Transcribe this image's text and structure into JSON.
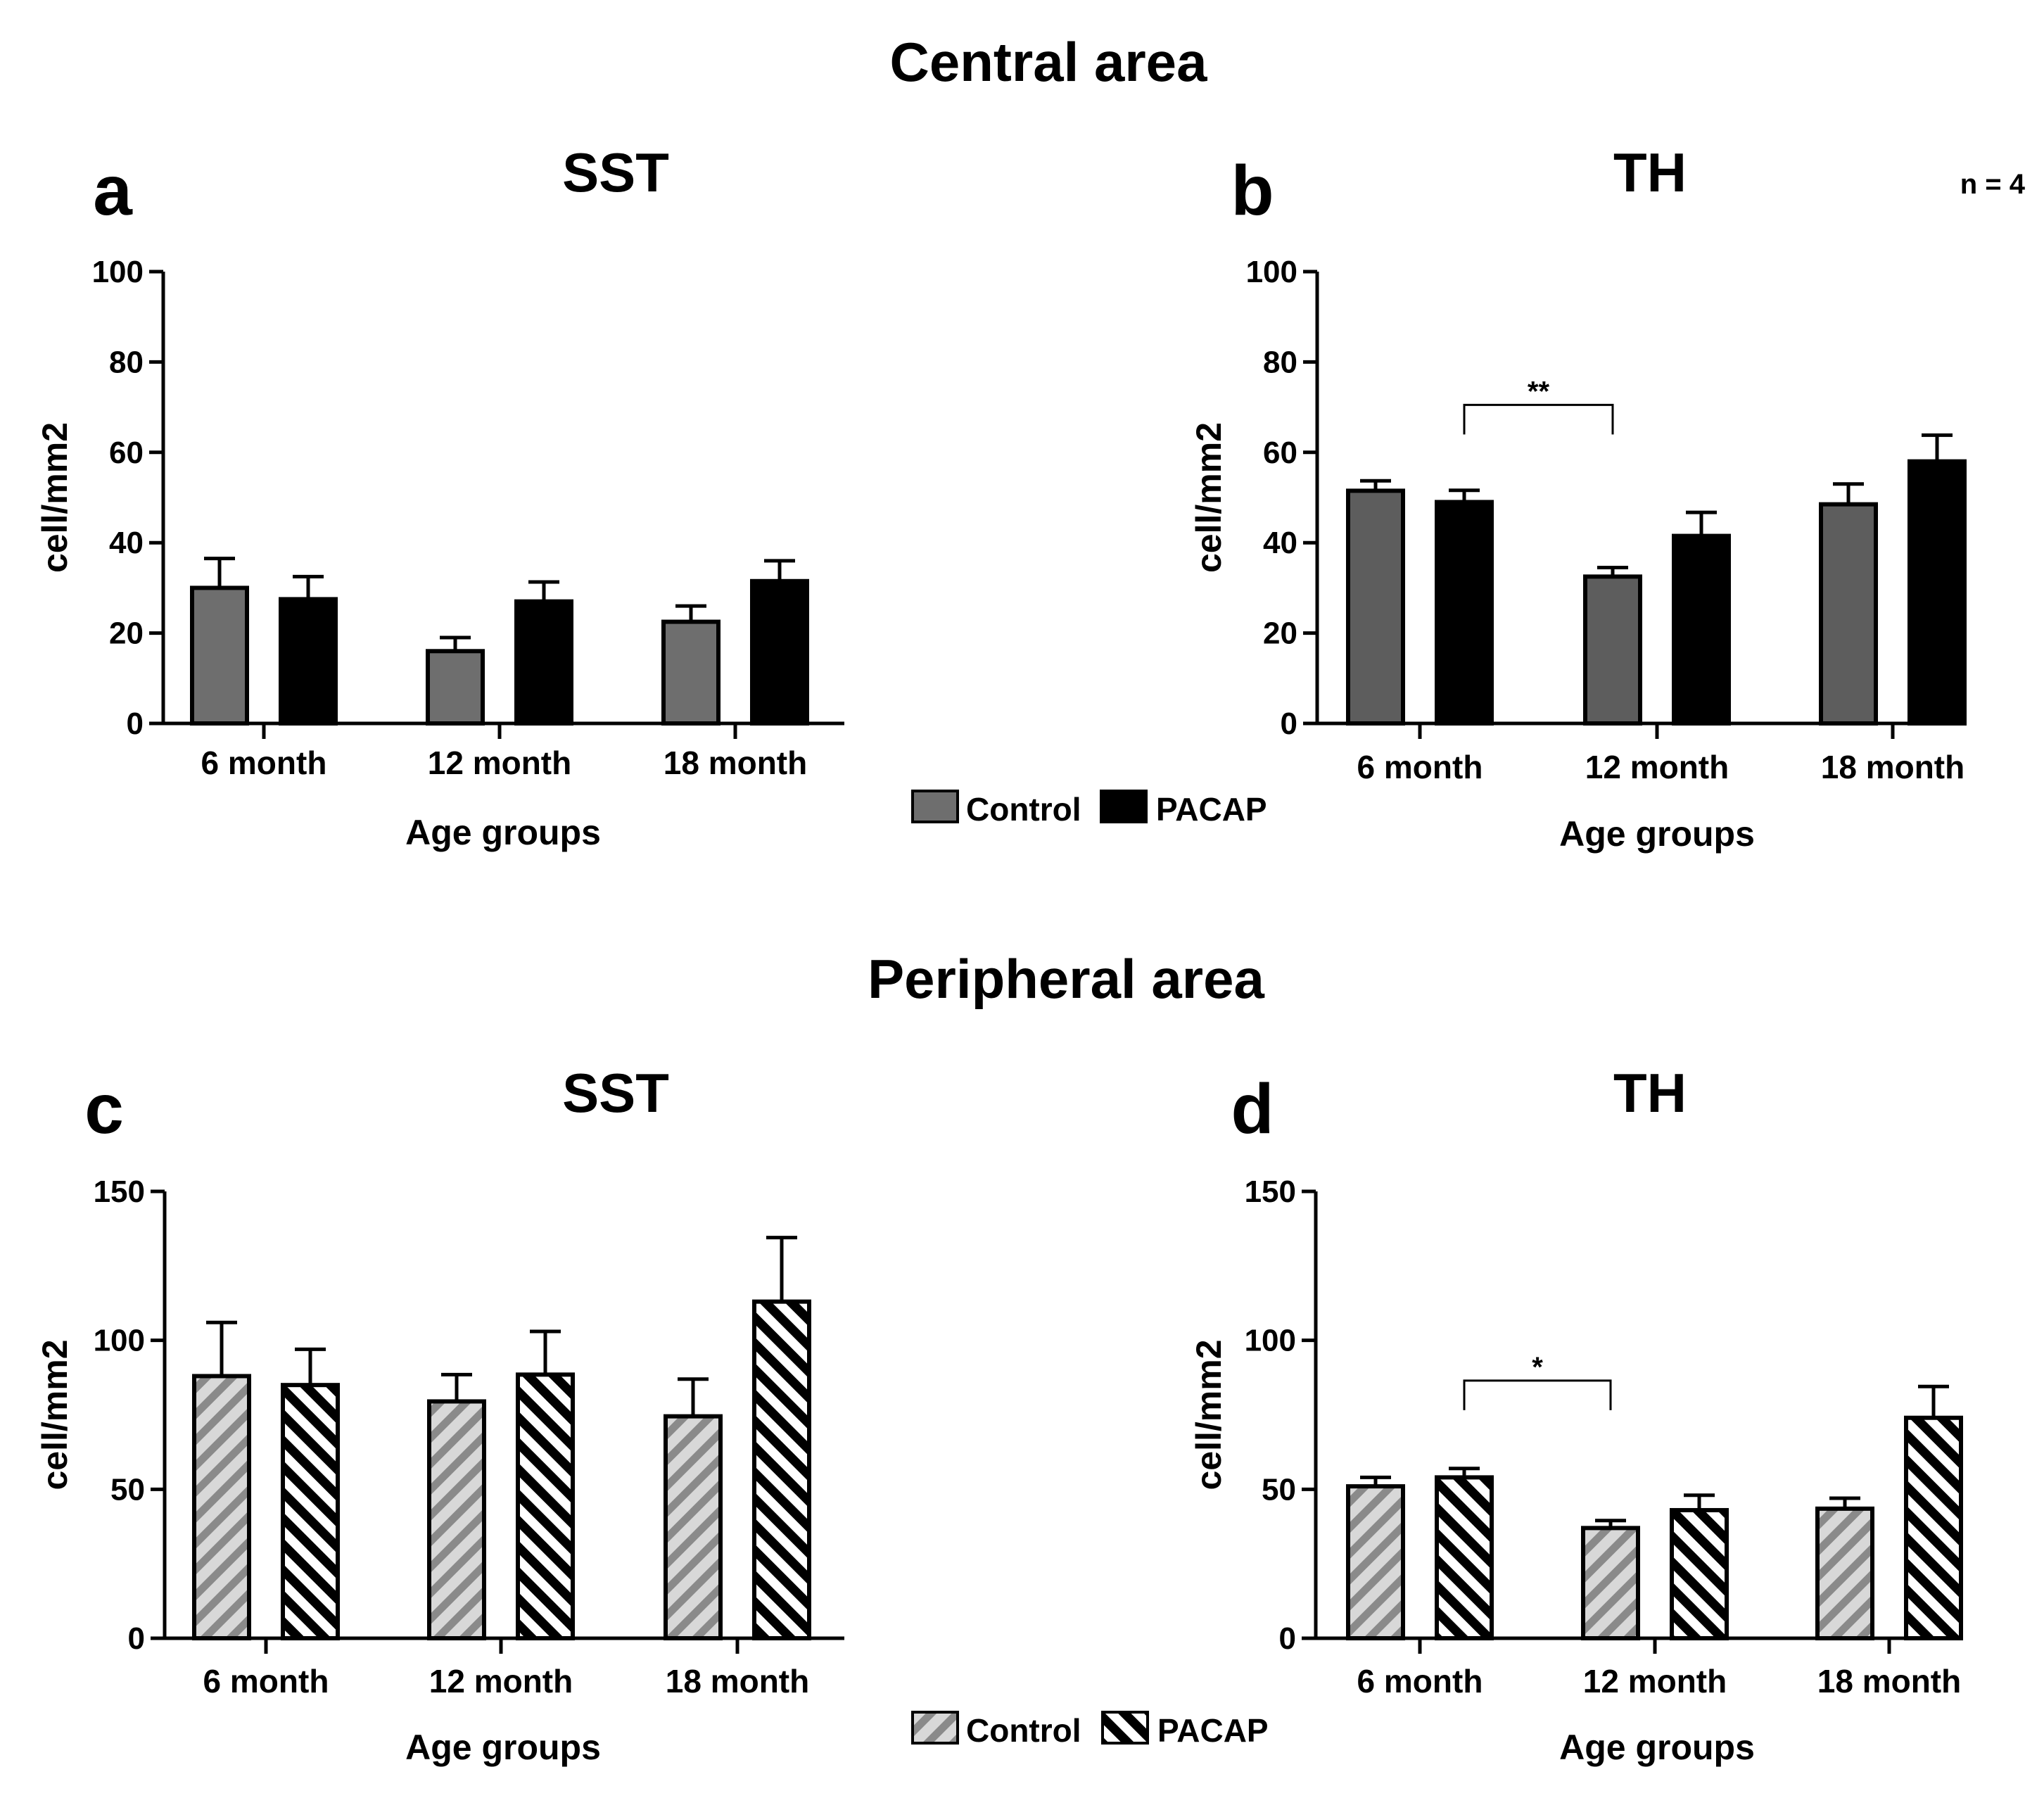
{
  "sections": [
    {
      "title": "Central area"
    },
    {
      "title": "Peripheral area"
    }
  ],
  "note": "n = 4",
  "legend": {
    "control_label": "Control",
    "pacap_label": "PACAP"
  },
  "colors": {
    "control_solid": "#6e6e6e",
    "control_solid_b": "#5d5d5d",
    "pacap": "#000000",
    "control_hatch_fg": "#8a8a8a",
    "control_hatch_bg": "#d8d8d8",
    "pacap_hatch_fg": "#000000",
    "pacap_hatch_bg": "#ffffff"
  },
  "chart_data": [
    {
      "panel": "a",
      "type": "bar",
      "title": "SST",
      "xlabel": "Age groups",
      "ylabel": "cell/mm2",
      "ylim": [
        0,
        100
      ],
      "yticks": [
        0,
        20,
        40,
        60,
        80,
        100
      ],
      "categories": [
        "6 month",
        "12 month",
        "18 month"
      ],
      "pattern": "solid",
      "series": [
        {
          "name": "Control",
          "values": [
            30,
            16,
            22.5
          ],
          "errors": [
            6.5,
            3,
            3.5
          ]
        },
        {
          "name": "PACAP",
          "values": [
            27.5,
            27,
            31.5
          ],
          "errors": [
            5,
            4.3,
            4.5
          ]
        }
      ],
      "significance": []
    },
    {
      "panel": "b",
      "type": "bar",
      "title": "TH",
      "xlabel": "Age groups",
      "ylabel": "cell/mm2",
      "ylim": [
        0,
        100
      ],
      "yticks": [
        0,
        20,
        40,
        60,
        80,
        100
      ],
      "categories": [
        "6 month",
        "12 month",
        "18 month"
      ],
      "pattern": "solid",
      "series": [
        {
          "name": "Control",
          "values": [
            51.5,
            32.5,
            48.5
          ],
          "errors": [
            2.2,
            2,
            4.5
          ]
        },
        {
          "name": "PACAP",
          "values": [
            49,
            41.5,
            58
          ],
          "errors": [
            2.6,
            5.2,
            5.8
          ]
        }
      ],
      "significance": [
        {
          "from": [
            0,
            1
          ],
          "to": [
            1,
            0
          ],
          "label": "**",
          "y": 70.5
        }
      ]
    },
    {
      "panel": "c",
      "type": "bar",
      "title": "SST",
      "xlabel": "Age groups",
      "ylabel": "cell/mm2",
      "ylim": [
        0,
        150
      ],
      "yticks": [
        0,
        50,
        100,
        150
      ],
      "categories": [
        "6 month",
        "12 month",
        "18 month"
      ],
      "pattern": "hatched",
      "series": [
        {
          "name": "Control",
          "values": [
            88,
            79.5,
            74.5
          ],
          "errors": [
            18,
            9,
            12.5
          ]
        },
        {
          "name": "PACAP",
          "values": [
            85,
            88.5,
            113
          ],
          "errors": [
            12,
            14.5,
            21.5
          ]
        }
      ],
      "significance": []
    },
    {
      "panel": "d",
      "type": "bar",
      "title": "TH",
      "xlabel": "Age groups",
      "ylabel": "cell/mm2",
      "ylim": [
        0,
        150
      ],
      "yticks": [
        0,
        50,
        100,
        150
      ],
      "categories": [
        "6 month",
        "12 month",
        "18 month"
      ],
      "pattern": "hatched",
      "series": [
        {
          "name": "Control",
          "values": [
            51,
            37,
            43.5
          ],
          "errors": [
            3,
            2.5,
            3.5
          ]
        },
        {
          "name": "PACAP",
          "values": [
            54,
            43,
            74
          ],
          "errors": [
            3,
            5,
            10.5
          ]
        }
      ],
      "significance": [
        {
          "from": [
            0,
            1
          ],
          "to": [
            1,
            0
          ],
          "label": "*",
          "y": 86.5
        }
      ]
    }
  ]
}
